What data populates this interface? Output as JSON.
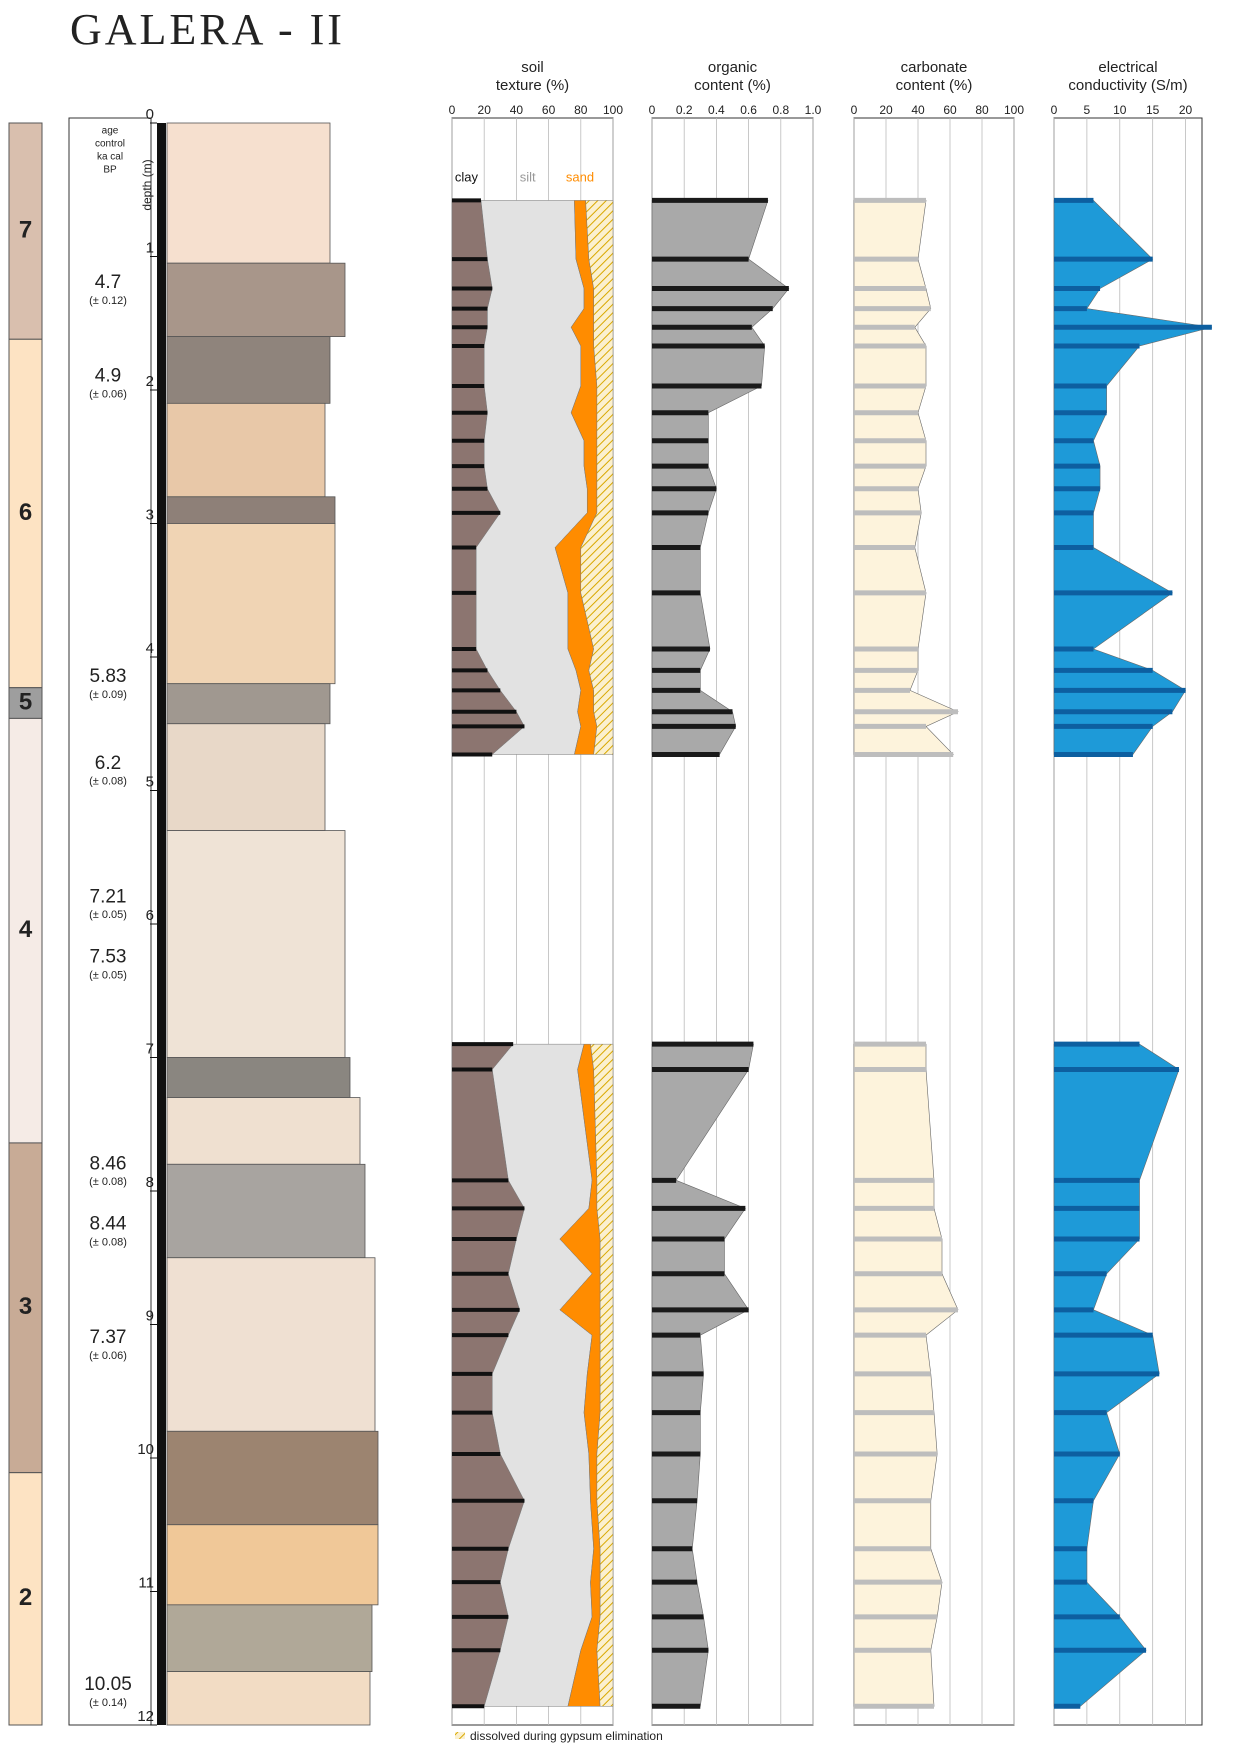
{
  "title": "GALERA - II",
  "age_header": [
    "age",
    "control",
    "ka cal",
    "BP"
  ],
  "depth_axis": {
    "label": "depth (m)",
    "ylim": [
      0,
      12
    ],
    "yticks": [
      0,
      1,
      2,
      3,
      4,
      5,
      6,
      7,
      8,
      9,
      10,
      11,
      12
    ]
  },
  "units": [
    {
      "label": "7",
      "top": 0,
      "base": 1.62,
      "color": "#d9bfae"
    },
    {
      "label": "6",
      "top": 1.62,
      "base": 4.23,
      "color": "#fde3c3"
    },
    {
      "label": "5",
      "top": 4.23,
      "base": 4.46,
      "color": "#9e9e9e"
    },
    {
      "label": "4",
      "top": 4.46,
      "base": 7.64,
      "color": "#f5ebe6"
    },
    {
      "label": "3",
      "top": 7.64,
      "base": 10.11,
      "color": "#c8ab96"
    },
    {
      "label": "2",
      "top": 10.11,
      "base": 12,
      "color": "#fde3c3"
    }
  ],
  "ages": [
    {
      "age": 4.7,
      "error": "(± 0.12)",
      "depth": 1.2
    },
    {
      "age": 4.9,
      "error": "(± 0.06)",
      "depth": 1.9
    },
    {
      "age": 5.83,
      "error": "(± 0.09)",
      "depth": 4.15
    },
    {
      "age": 6.2,
      "error": "(± 0.08)",
      "depth": 4.8
    },
    {
      "age": 7.21,
      "error": "(± 0.05)",
      "depth": 5.8
    },
    {
      "age": 7.53,
      "error": "(± 0.05)",
      "depth": 6.25
    },
    {
      "age": 8.46,
      "error": "(± 0.08)",
      "depth": 7.8
    },
    {
      "age": 8.44,
      "error": "(± 0.08)",
      "depth": 8.25
    },
    {
      "age": 7.37,
      "error": "(± 0.06)",
      "depth": 9.1
    },
    {
      "age": 10.05,
      "error": "(± 0.14)",
      "depth": 11.7
    }
  ],
  "sample_depths": [
    0.58,
    1.02,
    1.24,
    1.39,
    1.53,
    1.67,
    1.97,
    2.17,
    2.38,
    2.57,
    2.74,
    2.92,
    3.18,
    3.52,
    3.94,
    4.1,
    4.25,
    4.41,
    4.52,
    4.73,
    6.9,
    7.09,
    7.92,
    8.13,
    8.36,
    8.62,
    8.89,
    9.08,
    9.37,
    9.66,
    9.97,
    10.32,
    10.68,
    10.93,
    11.19,
    11.44,
    11.86
  ],
  "chart_data": [
    {
      "type": "stacked-area",
      "title": [
        "soil",
        "texture (%)"
      ],
      "xlim": [
        0,
        100
      ],
      "xticks": [
        0,
        20,
        40,
        60,
        80,
        100
      ],
      "series": [
        {
          "name": "clay",
          "color": "#8c7570",
          "values": [
            18,
            22,
            25,
            22,
            22,
            20,
            20,
            22,
            20,
            20,
            22,
            30,
            15,
            15,
            15,
            22,
            30,
            40,
            45,
            25,
            38,
            25,
            35,
            45,
            40,
            35,
            42,
            35,
            25,
            25,
            30,
            45,
            35,
            30,
            35,
            30,
            20
          ]
        },
        {
          "name": "silt",
          "color": "#e2e2e2",
          "values": [
            58,
            55,
            57,
            60,
            52,
            60,
            60,
            52,
            62,
            62,
            62,
            54,
            49,
            57,
            57,
            55,
            50,
            38,
            35,
            51,
            44,
            53,
            52,
            40,
            27,
            52,
            25,
            52,
            59,
            57,
            55,
            41,
            53,
            56,
            52,
            50,
            52
          ]
        },
        {
          "name": "sand",
          "color": "#ff8c00",
          "values": [
            7,
            8,
            6,
            6,
            14,
            8,
            10,
            16,
            8,
            8,
            6,
            6,
            16,
            8,
            16,
            8,
            8,
            10,
            10,
            12,
            4,
            10,
            3,
            5,
            25,
            5,
            25,
            5,
            8,
            10,
            5,
            4,
            4,
            6,
            5,
            10,
            20
          ]
        },
        {
          "name": "dissolved during gypsum elimination",
          "color": "#fbf0cf",
          "hatch": true,
          "values": [
            17,
            15,
            12,
            12,
            12,
            12,
            10,
            10,
            10,
            10,
            10,
            10,
            20,
            20,
            12,
            15,
            12,
            12,
            10,
            12,
            14,
            12,
            10,
            10,
            8,
            8,
            8,
            8,
            8,
            8,
            10,
            10,
            8,
            8,
            8,
            10,
            8
          ]
        }
      ]
    },
    {
      "type": "profile",
      "title": [
        "organic",
        "content (%)"
      ],
      "xlim": [
        0,
        1
      ],
      "xticks": [
        0,
        0.2,
        0.4,
        0.6,
        0.8,
        {
          "value": 1,
          "label": "1.0"
        }
      ],
      "series": [
        {
          "color": "#a9a9a9",
          "bar_color": "#1a1a1a",
          "values": [
            0.72,
            0.6,
            0.85,
            0.75,
            0.62,
            0.7,
            0.68,
            0.35,
            0.35,
            0.35,
            0.4,
            0.35,
            0.3,
            0.3,
            0.36,
            0.3,
            0.3,
            0.5,
            0.52,
            0.42,
            0.63,
            0.6,
            0.15,
            0.58,
            0.45,
            0.45,
            0.6,
            0.3,
            0.32,
            0.3,
            0.3,
            0.28,
            0.25,
            0.28,
            0.32,
            0.35,
            0.3
          ]
        }
      ]
    },
    {
      "type": "profile",
      "title": [
        "carbonate",
        "content (%)"
      ],
      "xlim": [
        0,
        100
      ],
      "xticks": [
        0,
        20,
        40,
        60,
        80,
        100
      ],
      "series": [
        {
          "color": "#fdf3dc",
          "bar_color": "#bdbdbd",
          "values": [
            45,
            40,
            45,
            48,
            38,
            45,
            45,
            40,
            45,
            45,
            40,
            42,
            38,
            45,
            40,
            40,
            35,
            65,
            45,
            62,
            45,
            45,
            50,
            50,
            55,
            55,
            65,
            45,
            48,
            50,
            52,
            48,
            48,
            55,
            52,
            48,
            50
          ]
        }
      ]
    },
    {
      "type": "profile",
      "title": [
        "electrical",
        "conductivity (S/m)"
      ],
      "xlim": [
        0,
        22.5
      ],
      "xticks": [
        0,
        5,
        10,
        15,
        20
      ],
      "series": [
        {
          "color": "#1e9ad8",
          "bar_color": "#0d5fa0",
          "values": [
            6,
            15,
            7,
            5,
            24,
            13,
            8,
            8,
            6,
            7,
            7,
            6,
            6,
            18,
            6,
            15,
            20,
            18,
            15,
            12,
            13,
            19,
            13,
            13,
            13,
            8,
            6,
            15,
            16,
            8,
            10,
            6,
            5,
            5,
            10,
            14,
            4
          ]
        }
      ]
    }
  ]
}
